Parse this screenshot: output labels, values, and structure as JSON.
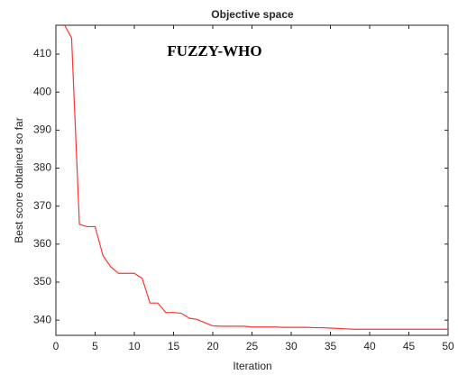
{
  "chart_data": {
    "type": "line",
    "title": "Objective space",
    "annotation": "FUZZY-WHO",
    "x_label": "Iteration",
    "y_label": "Best score obtained so far",
    "x": [
      1,
      2,
      3,
      4,
      5,
      6,
      7,
      8,
      9,
      10,
      11,
      12,
      13,
      14,
      15,
      16,
      17,
      18,
      19,
      20,
      21,
      22,
      23,
      24,
      25,
      26,
      27,
      28,
      29,
      30,
      31,
      32,
      33,
      34,
      35,
      36,
      37,
      38,
      39,
      40,
      41,
      42,
      43,
      44,
      45,
      46,
      47,
      48,
      49,
      50
    ],
    "series": [
      {
        "name": "Best score",
        "color": "#ff3333",
        "values": [
          418,
          414.3,
          365.2,
          364.6,
          364.6,
          357,
          354,
          352.3,
          352.3,
          352.3,
          351,
          344.5,
          344.5,
          342,
          342,
          341.8,
          340.5,
          340.2,
          339.3,
          338.5,
          338.4,
          338.4,
          338.4,
          338.4,
          338.2,
          338.2,
          338.2,
          338.2,
          338.1,
          338.1,
          338.1,
          338.1,
          338,
          338,
          337.9,
          337.8,
          337.7,
          337.6,
          337.6,
          337.6,
          337.6,
          337.6,
          337.6,
          337.6,
          337.6,
          337.6,
          337.6,
          337.6,
          337.6,
          337.6
        ]
      }
    ],
    "xlim": [
      0,
      50
    ],
    "xticks": [
      0,
      5,
      10,
      15,
      20,
      25,
      30,
      35,
      40,
      45,
      50
    ],
    "ylim": [
      336,
      417.6
    ],
    "yticks": [
      340,
      350,
      360,
      370,
      380,
      390,
      400,
      410
    ]
  }
}
